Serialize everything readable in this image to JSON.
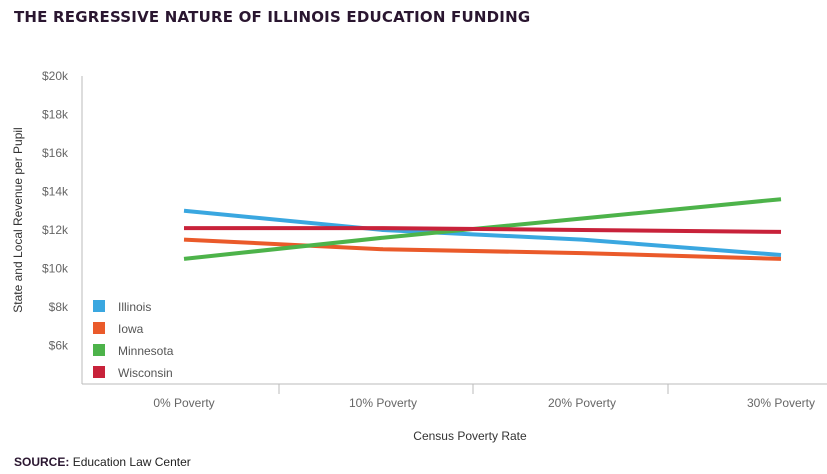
{
  "chart_data": {
    "type": "line",
    "title": "THE REGRESSIVE NATURE OF ILLINOIS EDUCATION FUNDING",
    "xlabel": "Census Poverty Rate",
    "ylabel": "State and Local Revenue per Pupil",
    "categories": [
      "0% Poverty",
      "10% Poverty",
      "20% Poverty",
      "30% Poverty"
    ],
    "y_ticks": [
      {
        "value": 20,
        "label": "$20k"
      },
      {
        "value": 18,
        "label": "$18k"
      },
      {
        "value": 16,
        "label": "$16k"
      },
      {
        "value": 14,
        "label": "$14k"
      },
      {
        "value": 12,
        "label": "$12k"
      },
      {
        "value": 10,
        "label": "$10k"
      },
      {
        "value": 8,
        "label": "$8k"
      },
      {
        "value": 6,
        "label": "$6k"
      }
    ],
    "ylim": [
      4,
      20
    ],
    "legend_position": "bottom-left",
    "series": [
      {
        "name": "Illinois",
        "color": "#3aa7e0",
        "values": [
          13.0,
          12.0,
          11.5,
          10.7
        ]
      },
      {
        "name": "Iowa",
        "color": "#ea5a2a",
        "values": [
          11.5,
          11.0,
          10.8,
          10.5
        ]
      },
      {
        "name": "Minnesota",
        "color": "#4db34a",
        "values": [
          10.5,
          11.6,
          12.6,
          13.6
        ]
      },
      {
        "name": "Wisconsin",
        "color": "#c8223a",
        "values": [
          12.1,
          12.1,
          12.0,
          11.9
        ]
      }
    ]
  },
  "source": {
    "label": "SOURCE:",
    "text": "Education Law Center"
  }
}
